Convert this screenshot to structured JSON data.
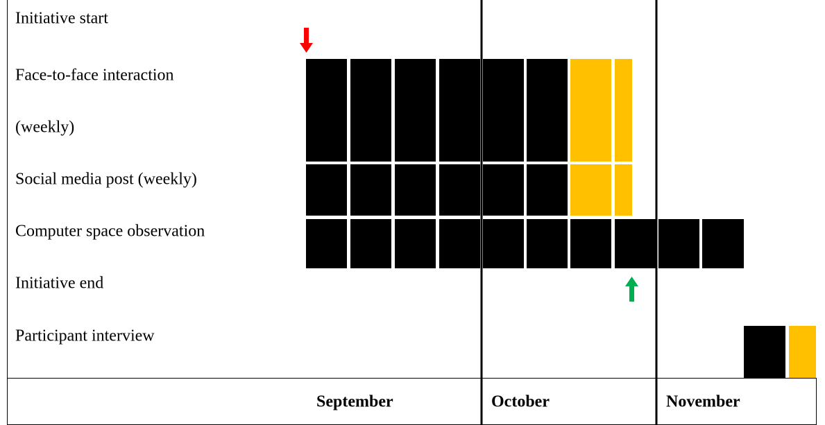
{
  "rows": [
    "Initiative start",
    "Face-to-face interaction",
    "(weekly)",
    "Social media post (weekly)",
    "Computer space observation",
    "Initiative end",
    "Participant interview"
  ],
  "months": [
    "September",
    "October",
    "November"
  ]
}
